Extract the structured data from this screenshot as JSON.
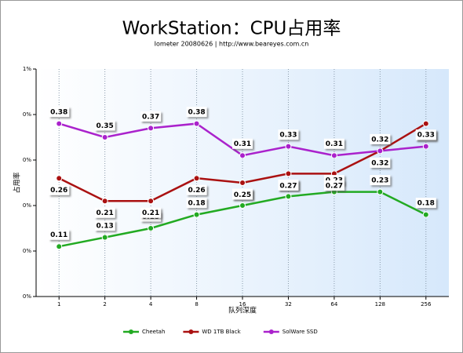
{
  "chart_data": {
    "type": "line",
    "title": "WorkStation：CPU占用率",
    "subtitle": "Iometer 20080626 | http://www.beareyes.com.cn",
    "y_label": "占用率",
    "x_label": "队列深度",
    "categories": [
      "1",
      "2",
      "4",
      "8",
      "16",
      "32",
      "64",
      "128",
      "256"
    ],
    "ylim": [
      0,
      0.5
    ],
    "yticks": [
      {
        "value": 0,
        "label": "0%"
      },
      {
        "value": 0.1,
        "label": "0%"
      },
      {
        "value": 0.2,
        "label": "0%"
      },
      {
        "value": 0.3,
        "label": "0%"
      },
      {
        "value": 0.4,
        "label": "0%"
      },
      {
        "value": 0.5,
        "label": "1%"
      }
    ],
    "grid": true,
    "legend": "bottom",
    "series": [
      {
        "name": "Cheetah",
        "color": "#22aa22",
        "label_side": "above",
        "values": [
          0.11,
          0.13,
          0.15,
          0.18,
          0.2,
          0.22,
          0.23,
          0.23,
          0.18
        ],
        "value_labels": [
          "0.11",
          "0.13",
          "0.15",
          "0.18",
          "0.20",
          "0.22",
          "0.23",
          "0.23",
          "0.18"
        ]
      },
      {
        "name": "WD 1TB Black",
        "color": "#aa1111",
        "label_side": "below",
        "values": [
          0.26,
          0.21,
          0.21,
          0.26,
          0.25,
          0.27,
          0.27,
          0.32,
          0.38
        ]
      },
      {
        "name": "SolWare SSD",
        "color": "#aa22cc",
        "label_side": "above",
        "values": [
          0.38,
          0.35,
          0.37,
          0.38,
          0.31,
          0.33,
          0.31,
          0.32,
          0.33
        ]
      }
    ]
  }
}
